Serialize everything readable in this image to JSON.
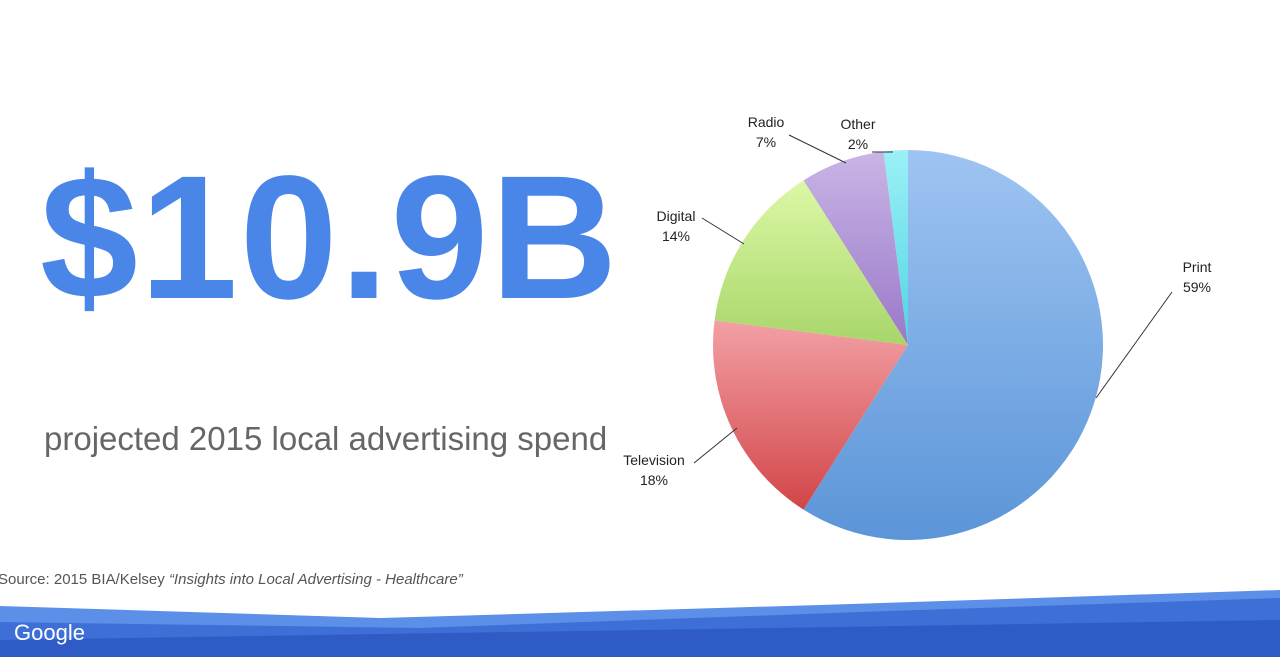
{
  "headline": {
    "value": "$10.9B",
    "subtitle": "projected 2015 local advertising spend"
  },
  "source": {
    "prefix": "Source: 2015 BIA/Kelsey ",
    "title": "“Insights into Local Advertising - Healthcare”"
  },
  "footer": {
    "logo": "Google"
  },
  "colors": {
    "accent": "#4a86e8",
    "band_dark": "#3b6ad0",
    "band_light": "#5a8ae6"
  },
  "chart_data": {
    "type": "pie",
    "categories": [
      "Print",
      "Television",
      "Digital",
      "Radio",
      "Other"
    ],
    "values": [
      59,
      18,
      14,
      7,
      2
    ],
    "labels": [
      "59%",
      "18%",
      "14%",
      "7%",
      "2%"
    ],
    "colors": [
      "#7eaee8",
      "#e0767a",
      "#c7ea8e",
      "#b59ad8",
      "#6fe0ec"
    ]
  }
}
